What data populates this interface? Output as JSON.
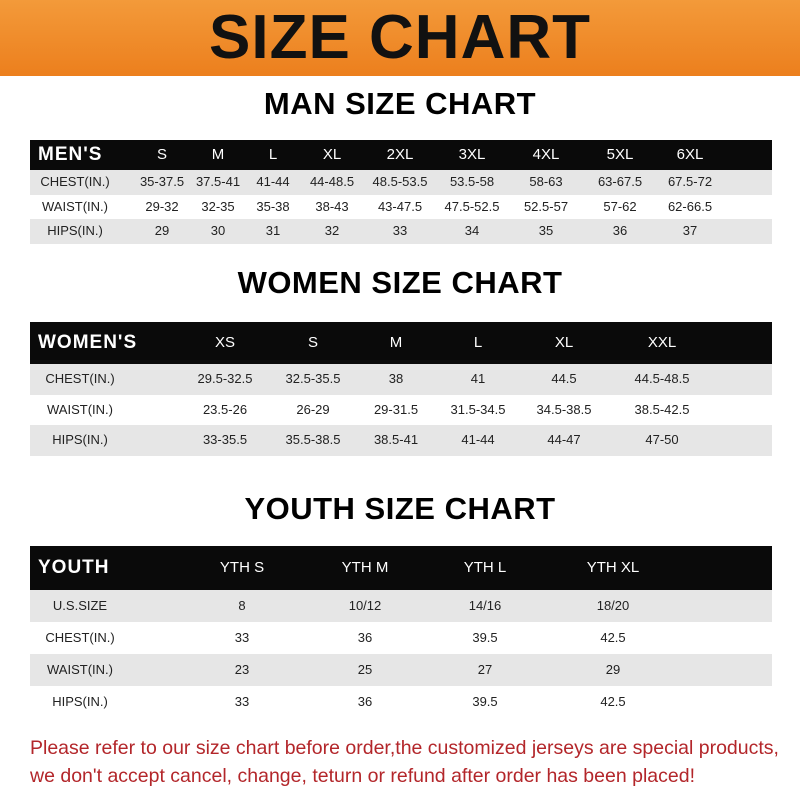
{
  "banner": {
    "title": "SIZE CHART",
    "color": "#ee8526"
  },
  "men": {
    "title": "MAN SIZE CHART",
    "header": [
      "MEN'S",
      "S",
      "M",
      "L",
      "XL",
      "2XL",
      "3XL",
      "4XL",
      "5XL",
      "6XL"
    ],
    "rows": [
      [
        "CHEST(IN.)",
        "35-37.5",
        "37.5-41",
        "41-44",
        "44-48.5",
        "48.5-53.5",
        "53.5-58",
        "58-63",
        "63-67.5",
        "67.5-72"
      ],
      [
        "WAIST(IN.)",
        "29-32",
        "32-35",
        "35-38",
        "38-43",
        "43-47.5",
        "47.5-52.5",
        "52.5-57",
        "57-62",
        "62-66.5"
      ],
      [
        "HIPS(IN.)",
        "29",
        "30",
        "31",
        "32",
        "33",
        "34",
        "35",
        "36",
        "37"
      ]
    ]
  },
  "women": {
    "title": "WOMEN SIZE CHART",
    "header": [
      "WOMEN'S",
      "XS",
      "S",
      "M",
      "L",
      "XL",
      "XXL"
    ],
    "rows": [
      [
        "CHEST(IN.)",
        "29.5-32.5",
        "32.5-35.5",
        "38",
        "41",
        "44.5",
        "44.5-48.5"
      ],
      [
        "WAIST(IN.)",
        "23.5-26",
        "26-29",
        "29-31.5",
        "31.5-34.5",
        "34.5-38.5",
        "38.5-42.5"
      ],
      [
        "HIPS(IN.)",
        "33-35.5",
        "35.5-38.5",
        "38.5-41",
        "41-44",
        "44-47",
        "47-50"
      ]
    ]
  },
  "youth": {
    "title": "YOUTH SIZE CHART",
    "header": [
      "YOUTH",
      "YTH S",
      "YTH M",
      "YTH L",
      "YTH XL"
    ],
    "rows": [
      [
        "U.S.SIZE",
        "8",
        "10/12",
        "14/16",
        "18/20"
      ],
      [
        "CHEST(IN.)",
        "33",
        "36",
        "39.5",
        "42.5"
      ],
      [
        "WAIST(IN.)",
        "23",
        "25",
        "27",
        "29"
      ],
      [
        "HIPS(IN.)",
        "33",
        "36",
        "39.5",
        "42.5"
      ]
    ]
  },
  "notice": {
    "line1": "Please refer to our size chart before order,the customized jerseys are special products,",
    "line2": "we don't accept cancel, change, teturn or refund after order has been placed!",
    "color": "#b3262a"
  }
}
